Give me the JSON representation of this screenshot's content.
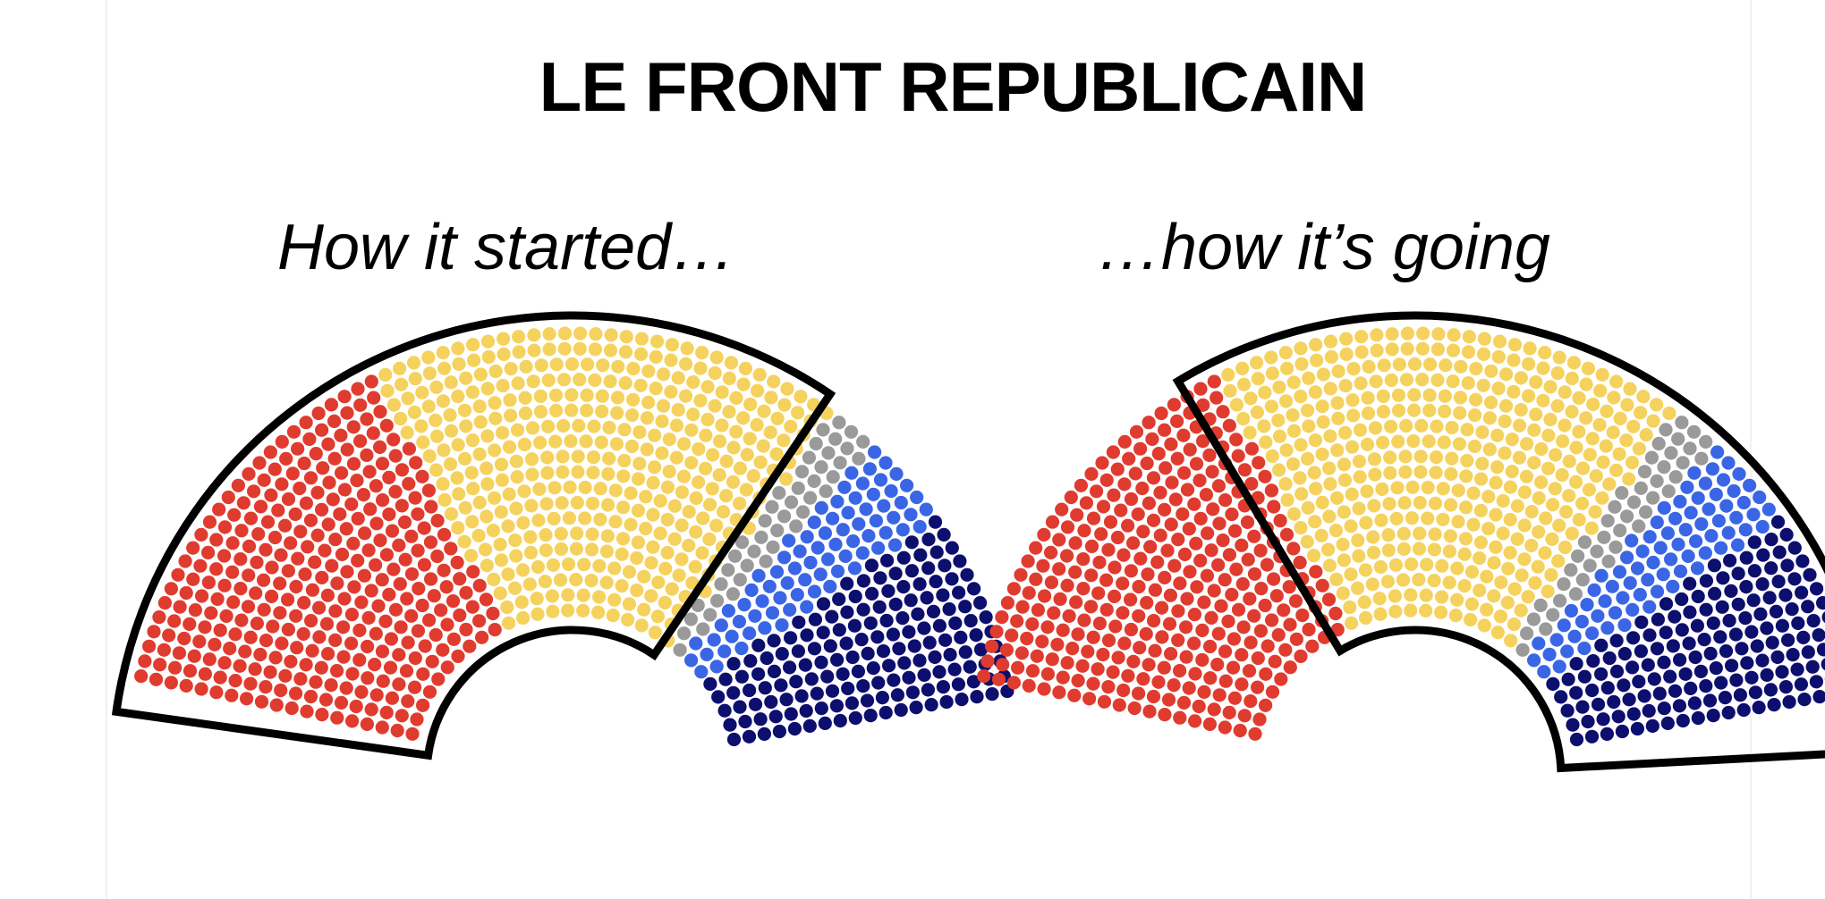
{
  "title": "LE FRONT REPUBLICAIN",
  "panels": [
    {
      "caption": "How it started…",
      "highlight": "all groups except the far-right blocs"
    },
    {
      "caption": "…how it’s going",
      "highlight": "all groups except the far-left bloc"
    }
  ],
  "colors": {
    "red": "#e03b2f",
    "yellow": "#f5d25e",
    "grey": "#9a9a9a",
    "blue": "#3a66e6",
    "navy": "#0c0f6e",
    "outline": "#000000"
  },
  "blocs": [
    {
      "color": "red",
      "share": 0.33
    },
    {
      "color": "yellow",
      "share": 0.39
    },
    {
      "color": "grey",
      "share": 0.04
    },
    {
      "color": "blue",
      "share": 0.08
    },
    {
      "color": "navy",
      "share": 0.16
    }
  ],
  "icons": [
    "hemicycle-seat-chart",
    "coalition-outline"
  ]
}
